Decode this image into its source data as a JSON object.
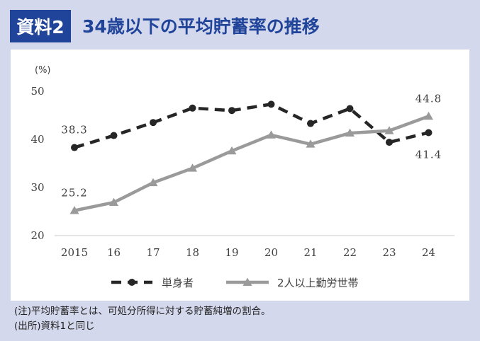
{
  "header": {
    "badge": "資料2",
    "title": "34歳以下の平均貯蓄率の推移"
  },
  "notes": [
    "(注)平均貯蓄率とは、可処分所得に対する貯蓄純増の割合。",
    "(出所)資料1と同じ"
  ],
  "chart_data": {
    "type": "line",
    "unit_label": "(%)",
    "categories": [
      "2015",
      "16",
      "17",
      "18",
      "19",
      "20",
      "21",
      "22",
      "23",
      "24"
    ],
    "yticks": [
      20,
      30,
      40,
      50
    ],
    "ylim": [
      20,
      50
    ],
    "grid": false,
    "legend_position": "bottom",
    "series": [
      {
        "name": "単身者",
        "color": "#262626",
        "style": "dashed",
        "marker": "circle",
        "values": [
          38.3,
          40.8,
          43.5,
          46.5,
          46.0,
          47.3,
          43.3,
          46.4,
          39.4,
          41.4
        ]
      },
      {
        "name": "2人以上勤労世帯",
        "color": "#9a9a9a",
        "style": "solid",
        "marker": "triangle",
        "values": [
          25.2,
          26.9,
          31.0,
          34.0,
          37.6,
          40.9,
          39.0,
          41.3,
          41.8,
          44.8
        ]
      }
    ],
    "data_labels": [
      {
        "series": 0,
        "index": 0,
        "text": "38.3"
      },
      {
        "series": 1,
        "index": 0,
        "text": "25.2"
      },
      {
        "series": 1,
        "index": 9,
        "text": "44.8"
      },
      {
        "series": 0,
        "index": 9,
        "text": "41.4"
      }
    ]
  }
}
